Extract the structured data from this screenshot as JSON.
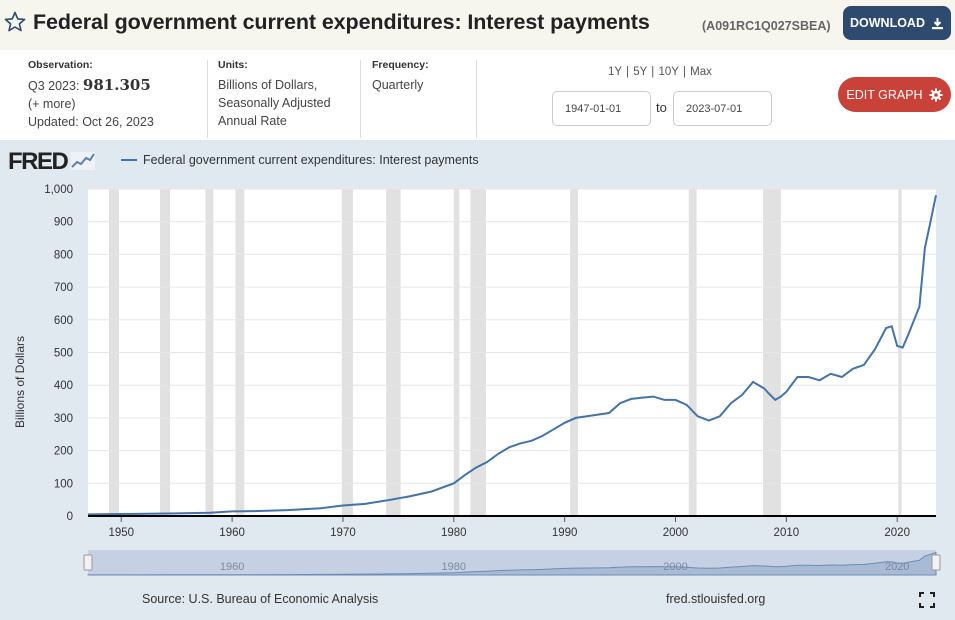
{
  "header": {
    "title": "Federal government current expenditures: Interest payments",
    "series_id": "(A091RC1Q027SBEA)",
    "download_label": "DOWNLOAD"
  },
  "meta": {
    "observation_label": "Observation:",
    "observation_period": "Q3 2023:",
    "observation_value": "981.305",
    "more": "(+ more)",
    "updated": "Updated: Oct 26, 2023",
    "units_label": "Units:",
    "units_line1": "Billions of Dollars,",
    "units_line2": "Seasonally Adjusted",
    "units_line3": "Annual Rate",
    "frequency_label": "Frequency:",
    "frequency": "Quarterly"
  },
  "controls": {
    "range_1y": "1Y",
    "range_5y": "5Y",
    "range_10y": "10Y",
    "range_max": "Max",
    "start_date": "1947-01-01",
    "to": "to",
    "end_date": "2023-07-01",
    "edit_label": "EDIT GRAPH"
  },
  "footer": {
    "logo": "FRED",
    "source": "Source: U.S. Bureau of Economic Analysis",
    "site": "fred.stlouisfed.org"
  },
  "colors": {
    "line": "#4572a7",
    "recession": "#e1e1e1",
    "download": "#2e4a6e",
    "edit": "#c8423a"
  },
  "chart_data": {
    "type": "line",
    "legend": "Federal government current expenditures: Interest payments",
    "ylabel": "Billions of Dollars",
    "ylim": [
      0,
      1000
    ],
    "yticks": [
      0,
      100,
      200,
      300,
      400,
      500,
      600,
      700,
      800,
      900,
      1000
    ],
    "ytick_labels": [
      "0",
      "100",
      "200",
      "300",
      "400",
      "500",
      "600",
      "700",
      "800",
      "900",
      "1,000"
    ],
    "xlim": [
      1947.0,
      2023.5
    ],
    "xticks": [
      1950,
      1960,
      1970,
      1980,
      1990,
      2000,
      2010,
      2020
    ],
    "navigator_ticks": [
      1960,
      1980,
      2000,
      2020
    ],
    "recessions": [
      [
        1948.9,
        1949.8
      ],
      [
        1953.5,
        1954.4
      ],
      [
        1957.6,
        1958.3
      ],
      [
        1960.3,
        1961.1
      ],
      [
        1969.9,
        1970.9
      ],
      [
        1973.9,
        1975.2
      ],
      [
        1980.0,
        1980.5
      ],
      [
        1981.5,
        1982.9
      ],
      [
        1990.5,
        1991.2
      ],
      [
        2001.2,
        2001.9
      ],
      [
        2007.9,
        2009.5
      ],
      [
        2020.1,
        2020.4
      ]
    ],
    "series": [
      {
        "name": "Federal government current expenditures: Interest payments",
        "x": [
          1947,
          1950,
          1955,
          1958,
          1960,
          1962,
          1965,
          1968,
          1970,
          1972,
          1974,
          1976,
          1978,
          1980,
          1981,
          1982,
          1983,
          1984,
          1985,
          1986,
          1987,
          1988,
          1989,
          1990,
          1991,
          1992,
          1993,
          1994,
          1995,
          1996,
          1997,
          1998,
          1999,
          2000,
          2001,
          2002,
          2003,
          2004,
          2005,
          2006,
          2007,
          2008,
          2008.5,
          2009,
          2009.5,
          2010,
          2011,
          2012,
          2013,
          2014,
          2015,
          2016,
          2017,
          2018,
          2019,
          2019.5,
          2020,
          2020.5,
          2021,
          2022,
          2022.5,
          2023,
          2023.5
        ],
        "values": [
          5,
          6,
          8,
          10,
          14,
          15,
          18,
          24,
          32,
          37,
          48,
          60,
          75,
          100,
          125,
          148,
          165,
          190,
          210,
          222,
          230,
          245,
          265,
          285,
          300,
          305,
          310,
          315,
          345,
          358,
          362,
          365,
          355,
          355,
          340,
          305,
          292,
          305,
          345,
          370,
          410,
          390,
          372,
          355,
          365,
          380,
          425,
          425,
          415,
          435,
          425,
          450,
          462,
          510,
          575,
          580,
          520,
          515,
          555,
          640,
          820,
          900,
          981
        ]
      }
    ]
  }
}
